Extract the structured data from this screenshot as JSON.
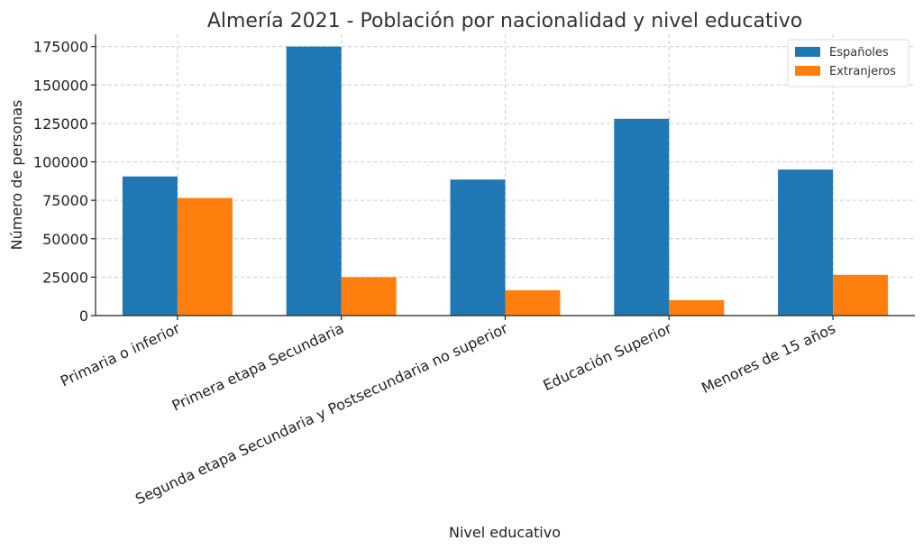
{
  "chart_data": {
    "type": "bar",
    "title": "Almería 2021 - Población por nacionalidad y nivel educativo",
    "xlabel": "Nivel educativo",
    "ylabel": "Número de personas",
    "categories": [
      "Primaria o inferior",
      "Primera etapa Secundaria",
      "Segunda etapa Secundaria y Postsecundaria no superior",
      "Educación Superior",
      "Menores de 15 años"
    ],
    "series": [
      {
        "name": "Españoles",
        "color": "#1f77b4",
        "values": [
          90500,
          175000,
          88500,
          128000,
          95000
        ]
      },
      {
        "name": "Extranjeros",
        "color": "#ff7f0e",
        "values": [
          76500,
          25000,
          16500,
          10000,
          26500
        ]
      }
    ],
    "ylim": [
      0,
      183000
    ],
    "yticks": [
      0,
      25000,
      50000,
      75000,
      100000,
      125000,
      150000,
      175000
    ],
    "grid": true,
    "legend_position": "top-right"
  }
}
